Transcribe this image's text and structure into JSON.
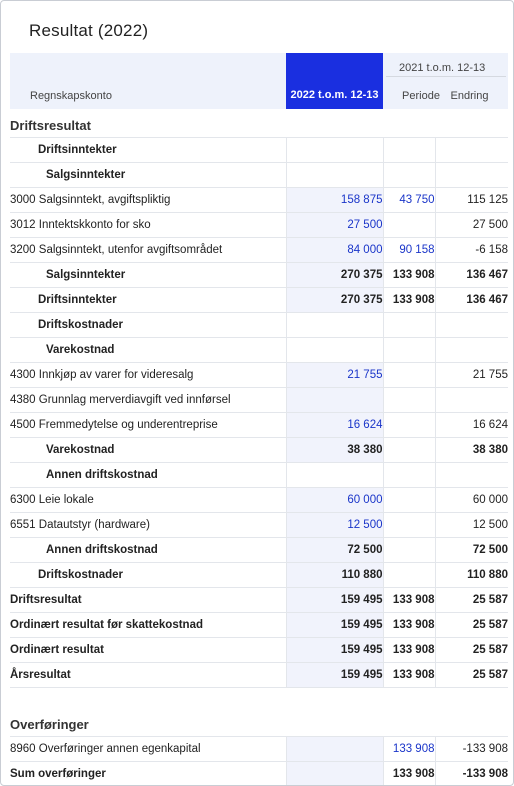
{
  "title": "Resultat (2022)",
  "columns": {
    "account": "Regnskapskonto",
    "current": "2022 t.o.m. 12-13",
    "prev_group": "2021 t.o.m. 12-13",
    "period": "Periode",
    "change": "Endring"
  },
  "colors": {
    "accent": "#1a2fe0",
    "link_value": "#1a35c9",
    "header_bg": "#eef2fb"
  },
  "rows": [
    {
      "type": "section",
      "label": "Driftsresultat"
    },
    {
      "type": "group",
      "level": 1,
      "label": "Driftsinntekter"
    },
    {
      "type": "group",
      "level": 2,
      "label": "Salgsinntekter"
    },
    {
      "type": "account",
      "label": "3000 Salgsinntekt, avgiftspliktig",
      "current": "158 875",
      "period": "43 750",
      "change": "115 125",
      "current_link": true,
      "period_link": true
    },
    {
      "type": "account",
      "label": "3012 Inntektskkonto for sko",
      "current": "27 500",
      "period": "",
      "change": "27 500",
      "current_link": true
    },
    {
      "type": "account",
      "label": "3200 Salgsinntekt, utenfor avgiftsområdet",
      "current": "84 000",
      "period": "90 158",
      "change": "-6 158",
      "current_link": true,
      "period_link": true
    },
    {
      "type": "subtotal",
      "level": 2,
      "label": "Salgsinntekter",
      "current": "270 375",
      "period": "133 908",
      "change": "136 467"
    },
    {
      "type": "subtotal",
      "level": 1,
      "label": "Driftsinntekter",
      "current": "270 375",
      "period": "133 908",
      "change": "136 467"
    },
    {
      "type": "group",
      "level": 1,
      "label": "Driftskostnader"
    },
    {
      "type": "group",
      "level": 2,
      "label": "Varekostnad"
    },
    {
      "type": "account",
      "label": "4300 Innkjøp av varer for videresalg",
      "current": "21 755",
      "period": "",
      "change": "21 755",
      "current_link": true
    },
    {
      "type": "account",
      "label": "4380 Grunnlag merverdiavgift ved innførsel",
      "current": "",
      "period": "",
      "change": ""
    },
    {
      "type": "account",
      "label": "4500 Fremmedytelse og underentreprise",
      "current": "16 624",
      "period": "",
      "change": "16 624",
      "current_link": true
    },
    {
      "type": "subtotal",
      "level": 2,
      "label": "Varekostnad",
      "current": "38 380",
      "period": "",
      "change": "38 380"
    },
    {
      "type": "group",
      "level": 2,
      "label": "Annen driftskostnad"
    },
    {
      "type": "account",
      "label": "6300 Leie lokale",
      "current": "60 000",
      "period": "",
      "change": "60 000",
      "current_link": true
    },
    {
      "type": "account",
      "label": "6551 Datautstyr (hardware)",
      "current": "12 500",
      "period": "",
      "change": "12 500",
      "current_link": true
    },
    {
      "type": "subtotal",
      "level": 2,
      "label": "Annen driftskostnad",
      "current": "72 500",
      "period": "",
      "change": "72 500"
    },
    {
      "type": "subtotal",
      "level": 1,
      "label": "Driftskostnader",
      "current": "110 880",
      "period": "",
      "change": "110 880"
    },
    {
      "type": "total",
      "label": "Driftsresultat",
      "current": "159 495",
      "period": "133 908",
      "change": "25 587"
    },
    {
      "type": "total",
      "label": "Ordinært resultat før skattekostnad",
      "current": "159 495",
      "period": "133 908",
      "change": "25 587"
    },
    {
      "type": "total",
      "label": "Ordinært resultat",
      "current": "159 495",
      "period": "133 908",
      "change": "25 587"
    },
    {
      "type": "total",
      "label": "Årsresultat",
      "current": "159 495",
      "period": "133 908",
      "change": "25 587"
    },
    {
      "type": "gap"
    },
    {
      "type": "section",
      "label": "Overføringer"
    },
    {
      "type": "account2",
      "label": "8960 Overføringer annen egenkapital",
      "current": "",
      "period": "133 908",
      "change": "-133 908",
      "period_link": true
    },
    {
      "type": "total",
      "label": "Sum overføringer",
      "current": "",
      "period": "133 908",
      "change": "-133 908"
    }
  ]
}
